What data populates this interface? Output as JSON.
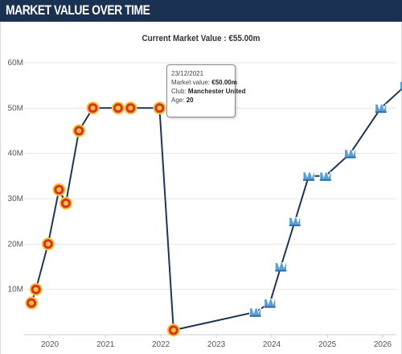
{
  "header": {
    "title": "MARKET VALUE OVER TIME"
  },
  "chart_data": {
    "type": "line",
    "title": "Current Market Value : €55.00m",
    "xlabel": "",
    "ylabel": "",
    "x_ticks": [
      "2020",
      "2021",
      "2022",
      "2023",
      "2024",
      "2025",
      "2026"
    ],
    "y_ticks": [
      "10M",
      "20M",
      "30M",
      "40M",
      "50M",
      "60M"
    ],
    "ylim": [
      0,
      60
    ],
    "grid": true,
    "legend": "none",
    "colors": {
      "line": "#1f3653",
      "grid": "#e4e4e4",
      "club_a": "#d8322b",
      "club_b": "#5aa0d6"
    },
    "series": [
      {
        "points": [
          {
            "x": "2019-09-01",
            "y": 7,
            "club": "club_a"
          },
          {
            "x": "2019-10-01",
            "y": 10,
            "club": "club_a"
          },
          {
            "x": "2019-12-20",
            "y": 20,
            "club": "club_a"
          },
          {
            "x": "2020-03-01",
            "y": 32,
            "club": "club_a"
          },
          {
            "x": "2020-04-15",
            "y": 29,
            "club": "club_a"
          },
          {
            "x": "2020-07-10",
            "y": 45,
            "club": "club_a"
          },
          {
            "x": "2020-10-10",
            "y": 50,
            "club": "club_a"
          },
          {
            "x": "2021-03-25",
            "y": 50,
            "club": "club_a"
          },
          {
            "x": "2021-06-15",
            "y": 50,
            "club": "club_a"
          },
          {
            "x": "2021-12-23",
            "y": 50,
            "club": "club_a"
          },
          {
            "x": "2022-03-25",
            "y": 1,
            "club": "club_a"
          },
          {
            "x": "2023-09-15",
            "y": 5,
            "club": "club_b"
          },
          {
            "x": "2023-12-20",
            "y": 7,
            "club": "club_b"
          },
          {
            "x": "2024-03-01",
            "y": 15,
            "club": "club_b"
          },
          {
            "x": "2024-06-01",
            "y": 25,
            "club": "club_b"
          },
          {
            "x": "2024-09-01",
            "y": 35,
            "club": "club_b"
          },
          {
            "x": "2024-12-20",
            "y": 35,
            "club": "club_b"
          },
          {
            "x": "2025-06-01",
            "y": 40,
            "club": "club_b"
          },
          {
            "x": "2025-12-20",
            "y": 50,
            "club": "club_b"
          },
          {
            "x": "2026-06-01",
            "y": 55,
            "club": "club_b"
          }
        ]
      }
    ],
    "tooltip": {
      "date": "23/12/2021",
      "market_value_label": "Market value:",
      "market_value": "€50.00m",
      "club_label": "Club:",
      "club": "Manchester United",
      "age_label": "Age:",
      "age": "20"
    }
  }
}
